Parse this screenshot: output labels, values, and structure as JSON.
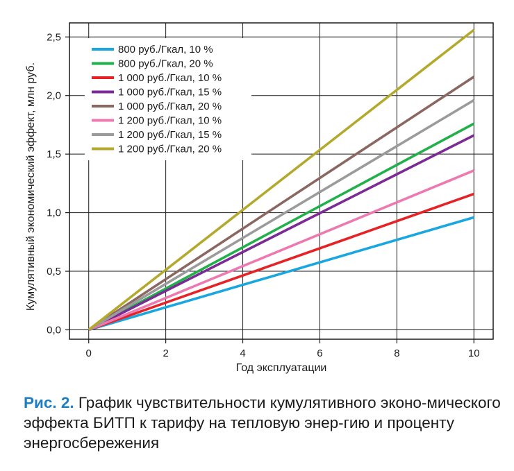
{
  "chart_data": {
    "type": "line",
    "xlabel": "Год эксплуатации",
    "ylabel": "Кумулятивный экономический эффект, млн руб.",
    "xlim": [
      -0.5,
      10.5
    ],
    "ylim": [
      -0.08,
      2.62
    ],
    "xticks": [
      0,
      2,
      4,
      6,
      8,
      10
    ],
    "xtick_labels": [
      "0",
      "2",
      "4",
      "6",
      "8",
      "10"
    ],
    "yticks": [
      0,
      0.5,
      1.0,
      1.5,
      2.0,
      2.5
    ],
    "ytick_labels": [
      "0,0",
      "0,5",
      "1,0",
      "1,5",
      "2,0",
      "2,5"
    ],
    "grid": true,
    "legend_position": "top-left",
    "x": [
      0,
      10
    ],
    "series": [
      {
        "name": "800 руб./Гкал, 10 %",
        "color": "#1aa7e0",
        "values": [
          0.0,
          0.96
        ]
      },
      {
        "name": "800 руб./Гкал, 20 %",
        "color": "#22b04b",
        "values": [
          0.0,
          1.76
        ]
      },
      {
        "name": "1 000 руб./Гкал, 10 %",
        "color": "#e52225",
        "values": [
          0.0,
          1.16
        ]
      },
      {
        "name": "1 000 руб./Гкал, 15 %",
        "color": "#7b2a96",
        "values": [
          0.0,
          1.66
        ]
      },
      {
        "name": "1 000 руб./Гкал, 20 %",
        "color": "#8b6761",
        "values": [
          0.0,
          2.16
        ]
      },
      {
        "name": "1 200 руб./Гкал, 10 %",
        "color": "#ee78b0",
        "values": [
          0.0,
          1.36
        ]
      },
      {
        "name": "1 200 руб./Гкал, 15 %",
        "color": "#9b9b9b",
        "values": [
          0.0,
          1.96
        ]
      },
      {
        "name": "1 200 руб./Гкал, 20 %",
        "color": "#b3aa2d",
        "values": [
          0.0,
          2.56
        ]
      }
    ]
  },
  "caption": {
    "label": "Рис. 2.",
    "text": "График чувствительности кумулятивного эконо-мического эффекта БИТП к тарифу на тепловую энер-гию и проценту энергосбережения"
  }
}
